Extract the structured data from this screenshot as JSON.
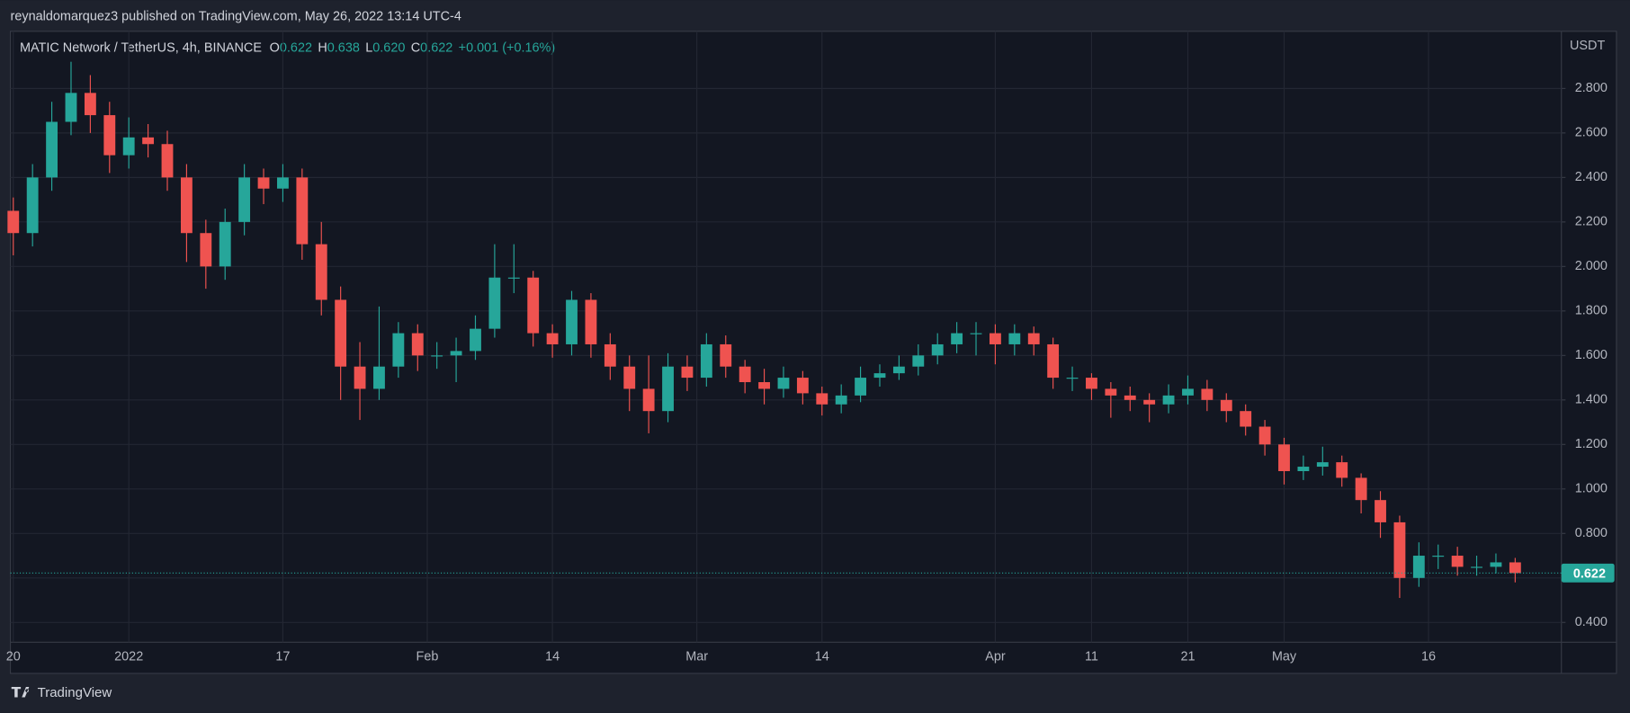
{
  "header": {
    "publisher": "reynaldomarquez3 published on TradingView.com, May 26, 2022 13:14 UTC-4"
  },
  "footer": {
    "brand": "TradingView"
  },
  "chart_data": {
    "type": "candlestick",
    "symbol": "MATIC Network / TetherUS, 4h, BINANCE",
    "ohlc_legend": {
      "o_label": "O",
      "o": "0.622",
      "h_label": "H",
      "h": "0.638",
      "l_label": "L",
      "l": "0.620",
      "c_label": "C",
      "c": "0.622",
      "change": "+0.001 (+0.16%)"
    },
    "y_axis_label": "USDT",
    "up_color": "#26a69a",
    "down_color": "#ef5350",
    "last_price": 0.622,
    "x": [
      0,
      2,
      4,
      6,
      8,
      10,
      12,
      14,
      16,
      18,
      20,
      22,
      24,
      26,
      28,
      30,
      32,
      34,
      36,
      38,
      40,
      42,
      44,
      46,
      48,
      50,
      52,
      54,
      56,
      58,
      60,
      62,
      64,
      66,
      68,
      70,
      72,
      74,
      76,
      78,
      80,
      82,
      84,
      86,
      88,
      90,
      92,
      94,
      96,
      98,
      100,
      102,
      104,
      106,
      108,
      110,
      112,
      114,
      116,
      118,
      120,
      122,
      124,
      126,
      128,
      130,
      132,
      134,
      136,
      138,
      140,
      142,
      144,
      146,
      148,
      150,
      152,
      154,
      156
    ],
    "open": [
      2.25,
      2.15,
      2.4,
      2.65,
      2.78,
      2.68,
      2.5,
      2.58,
      2.55,
      2.4,
      2.15,
      2.0,
      2.2,
      2.4,
      2.35,
      2.4,
      2.1,
      1.85,
      1.55,
      1.45,
      1.55,
      1.7,
      1.6,
      1.6,
      1.62,
      1.72,
      1.95,
      1.95,
      1.7,
      1.65,
      1.85,
      1.65,
      1.55,
      1.45,
      1.35,
      1.55,
      1.5,
      1.65,
      1.55,
      1.48,
      1.45,
      1.5,
      1.43,
      1.38,
      1.42,
      1.5,
      1.52,
      1.55,
      1.6,
      1.65,
      1.7,
      1.7,
      1.65,
      1.7,
      1.65,
      1.5,
      1.5,
      1.45,
      1.42,
      1.4,
      1.38,
      1.42,
      1.45,
      1.4,
      1.35,
      1.28,
      1.2,
      1.08,
      1.1,
      1.12,
      1.05,
      0.95,
      0.85,
      0.6,
      0.7,
      0.7,
      0.65,
      0.65,
      0.67
    ],
    "high": [
      2.31,
      2.46,
      2.74,
      2.92,
      2.86,
      2.74,
      2.67,
      2.64,
      2.61,
      2.46,
      2.21,
      2.26,
      2.46,
      2.44,
      2.46,
      2.44,
      2.2,
      1.91,
      1.66,
      1.82,
      1.75,
      1.74,
      1.66,
      1.68,
      1.78,
      2.1,
      2.1,
      1.98,
      1.74,
      1.89,
      1.88,
      1.7,
      1.6,
      1.6,
      1.61,
      1.6,
      1.7,
      1.69,
      1.58,
      1.54,
      1.55,
      1.53,
      1.46,
      1.47,
      1.55,
      1.56,
      1.6,
      1.65,
      1.7,
      1.75,
      1.75,
      1.74,
      1.74,
      1.73,
      1.68,
      1.55,
      1.52,
      1.48,
      1.46,
      1.43,
      1.47,
      1.51,
      1.49,
      1.43,
      1.38,
      1.31,
      1.23,
      1.15,
      1.19,
      1.15,
      1.07,
      0.99,
      0.88,
      0.76,
      0.75,
      0.74,
      0.7,
      0.71,
      0.69
    ],
    "low": [
      2.05,
      2.09,
      2.34,
      2.59,
      2.6,
      2.42,
      2.44,
      2.49,
      2.34,
      2.02,
      1.9,
      1.94,
      2.14,
      2.28,
      2.29,
      2.03,
      1.78,
      1.4,
      1.31,
      1.4,
      1.5,
      1.53,
      1.54,
      1.48,
      1.58,
      1.68,
      1.88,
      1.64,
      1.59,
      1.6,
      1.59,
      1.49,
      1.35,
      1.25,
      1.3,
      1.44,
      1.46,
      1.5,
      1.43,
      1.38,
      1.41,
      1.38,
      1.33,
      1.34,
      1.39,
      1.46,
      1.49,
      1.51,
      1.56,
      1.61,
      1.6,
      1.56,
      1.6,
      1.6,
      1.45,
      1.44,
      1.4,
      1.32,
      1.35,
      1.3,
      1.34,
      1.38,
      1.35,
      1.3,
      1.24,
      1.15,
      1.02,
      1.04,
      1.06,
      1.01,
      0.89,
      0.78,
      0.51,
      0.56,
      0.64,
      0.61,
      0.61,
      0.62,
      0.58
    ],
    "close": [
      2.15,
      2.4,
      2.65,
      2.78,
      2.68,
      2.5,
      2.58,
      2.55,
      2.4,
      2.15,
      2.0,
      2.2,
      2.4,
      2.35,
      2.4,
      2.1,
      1.85,
      1.55,
      1.45,
      1.55,
      1.7,
      1.6,
      1.6,
      1.62,
      1.72,
      1.95,
      1.95,
      1.7,
      1.65,
      1.85,
      1.65,
      1.55,
      1.45,
      1.35,
      1.55,
      1.5,
      1.65,
      1.55,
      1.48,
      1.45,
      1.5,
      1.43,
      1.38,
      1.42,
      1.5,
      1.52,
      1.55,
      1.6,
      1.65,
      1.7,
      1.7,
      1.65,
      1.7,
      1.65,
      1.5,
      1.5,
      1.45,
      1.42,
      1.4,
      1.38,
      1.42,
      1.45,
      1.4,
      1.35,
      1.28,
      1.2,
      1.08,
      1.1,
      1.12,
      1.05,
      0.95,
      0.85,
      0.6,
      0.7,
      0.7,
      0.65,
      0.65,
      0.67,
      0.622
    ],
    "xlim": [
      -0.3,
      160.8
    ],
    "ylim": [
      0.311,
      3.057
    ],
    "xticks": [
      {
        "value": 0,
        "label": "20"
      },
      {
        "value": 12,
        "label": "2022"
      },
      {
        "value": 28,
        "label": "17"
      },
      {
        "value": 43,
        "label": "Feb"
      },
      {
        "value": 56,
        "label": "14"
      },
      {
        "value": 71,
        "label": "Mar"
      },
      {
        "value": 84,
        "label": "14"
      },
      {
        "value": 102,
        "label": "Apr"
      },
      {
        "value": 112,
        "label": "11"
      },
      {
        "value": 122,
        "label": "21"
      },
      {
        "value": 132,
        "label": "May"
      },
      {
        "value": 147,
        "label": "16"
      }
    ],
    "yticks": [
      {
        "value": 0.4,
        "label": "0.400"
      },
      {
        "value": 0.6,
        "label": "0.600"
      },
      {
        "value": 0.8,
        "label": "0.800"
      },
      {
        "value": 1.0,
        "label": "1.000"
      },
      {
        "value": 1.2,
        "label": "1.200"
      },
      {
        "value": 1.4,
        "label": "1.400"
      },
      {
        "value": 1.6,
        "label": "1.600"
      },
      {
        "value": 1.8,
        "label": "1.800"
      },
      {
        "value": 2.0,
        "label": "2.000"
      },
      {
        "value": 2.2,
        "label": "2.200"
      },
      {
        "value": 2.4,
        "label": "2.400"
      },
      {
        "value": 2.6,
        "label": "2.600"
      },
      {
        "value": 2.8,
        "label": "2.800"
      }
    ],
    "grid": true
  }
}
